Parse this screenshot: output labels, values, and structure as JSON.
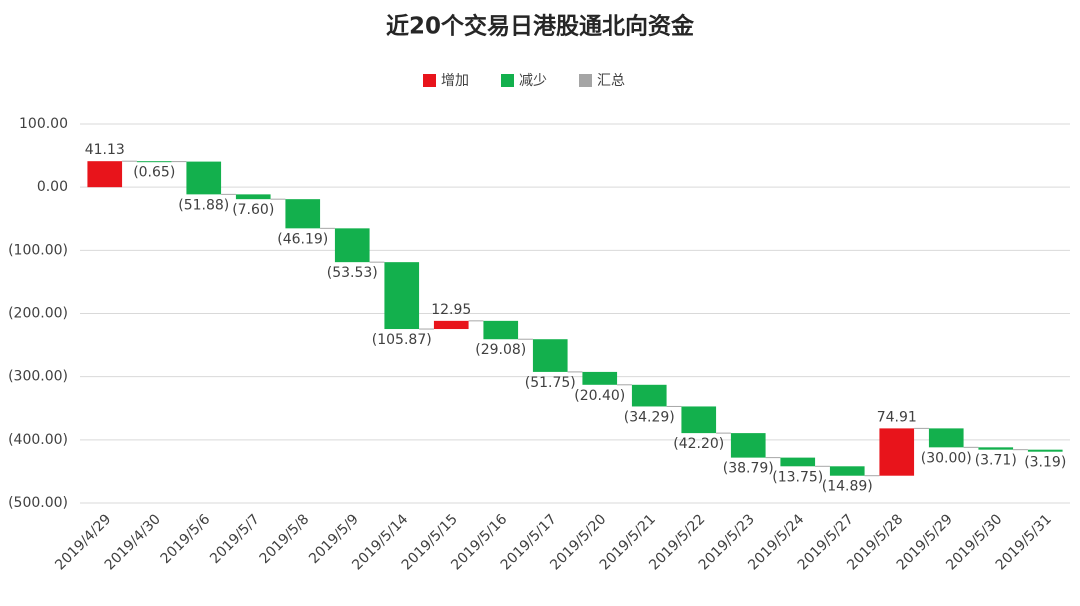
{
  "chart_data": {
    "type": "waterfall",
    "title": "近20个交易日港股通北向资金",
    "legend": [
      {
        "name": "增加",
        "color": "#e8141b"
      },
      {
        "name": "减少",
        "color": "#13b04d"
      },
      {
        "name": "汇总",
        "color": "#a5a5a5"
      }
    ],
    "categories": [
      "2019/4/29",
      "2019/4/30",
      "2019/5/6",
      "2019/5/7",
      "2019/5/8",
      "2019/5/9",
      "2019/5/14",
      "2019/5/15",
      "2019/5/16",
      "2019/5/17",
      "2019/5/20",
      "2019/5/21",
      "2019/5/22",
      "2019/5/23",
      "2019/5/24",
      "2019/5/27",
      "2019/5/28",
      "2019/5/29",
      "2019/5/30",
      "2019/5/31"
    ],
    "values": [
      41.13,
      -0.65,
      -51.88,
      -7.6,
      -46.19,
      -53.53,
      -105.87,
      12.95,
      -29.08,
      -51.75,
      -20.4,
      -34.29,
      -42.2,
      -38.79,
      -13.75,
      -14.89,
      74.91,
      -30.0,
      -3.71,
      -3.19
    ],
    "value_labels": [
      "41.13",
      "(0.65)",
      "(51.88)",
      "(7.60)",
      "(46.19)",
      "(53.53)",
      "(105.87)",
      "12.95",
      "(29.08)",
      "(51.75)",
      "(20.40)",
      "(34.29)",
      "(42.20)",
      "(38.79)",
      "(13.75)",
      "(14.89)",
      "74.91",
      "(30.00)",
      "(3.71)",
      "(3.19)"
    ],
    "ylim": [
      -500,
      100
    ],
    "yticks": [
      {
        "value": 100,
        "label": "100.00"
      },
      {
        "value": 0,
        "label": "0.00"
      },
      {
        "value": -100,
        "label": "(100.00)"
      },
      {
        "value": -200,
        "label": "(200.00)"
      },
      {
        "value": -300,
        "label": "(300.00)"
      },
      {
        "value": -400,
        "label": "(400.00)"
      },
      {
        "value": -500,
        "label": "(500.00)"
      }
    ],
    "grid": true
  }
}
